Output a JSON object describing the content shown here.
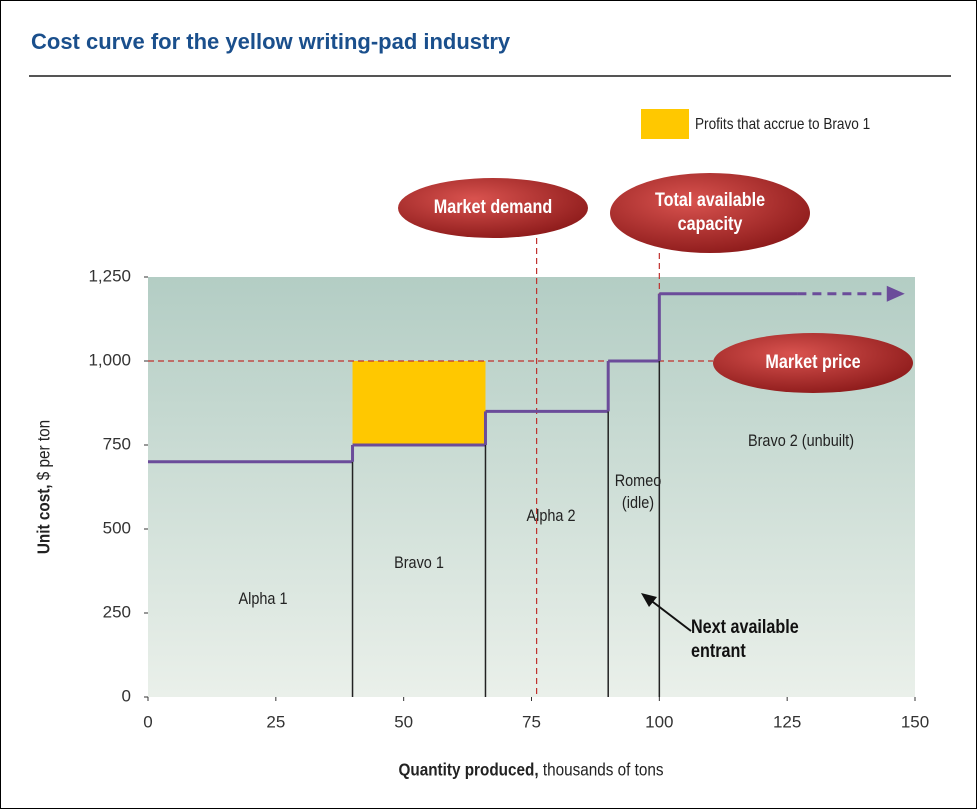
{
  "chart_data": {
    "type": "step",
    "title": "Cost curve for the yellow writing-pad industry",
    "xlabel_bold": "Quantity produced,",
    "xlabel_rest": " thousands of tons",
    "ylabel_bold": "Unit cost,",
    "ylabel_rest": " $ per ton",
    "xlim": [
      0,
      150
    ],
    "ylim": [
      0,
      1250
    ],
    "xticks": [
      0,
      25,
      50,
      75,
      100,
      125,
      150
    ],
    "yticks": [
      0,
      250,
      500,
      750,
      {
        "value": 1000,
        "label": "1,000"
      },
      {
        "value": 1250,
        "label": "1,250"
      }
    ],
    "color": "#6b4c9a",
    "segments": [
      {
        "name": "Alpha 1",
        "x0": 0,
        "x1": 40,
        "value": 700
      },
      {
        "name": "Bravo 1",
        "x0": 40,
        "x1": 66,
        "value": 750
      },
      {
        "name": "Alpha 2",
        "x0": 66,
        "x1": 90,
        "value": 850
      },
      {
        "name": "Romeo (idle)",
        "x0": 90,
        "x1": 100,
        "value": 1000
      },
      {
        "name": "Bravo 2 (unbuilt)",
        "x0": 100,
        "x1": 127,
        "value": 1200,
        "dashed_to": 148
      }
    ],
    "profit_area": {
      "name": "Profits that accrue to Bravo 1",
      "color": "#ffc800",
      "x0": 40,
      "x1": 66,
      "y0": 750,
      "y1": 1000
    },
    "market_demand": {
      "label": "Market demand",
      "x": 76
    },
    "total_capacity": {
      "label": "Total available capacity",
      "x": 100
    },
    "market_price": {
      "label": "Market price",
      "y": 1000
    },
    "annotation": "Next available entrant"
  }
}
